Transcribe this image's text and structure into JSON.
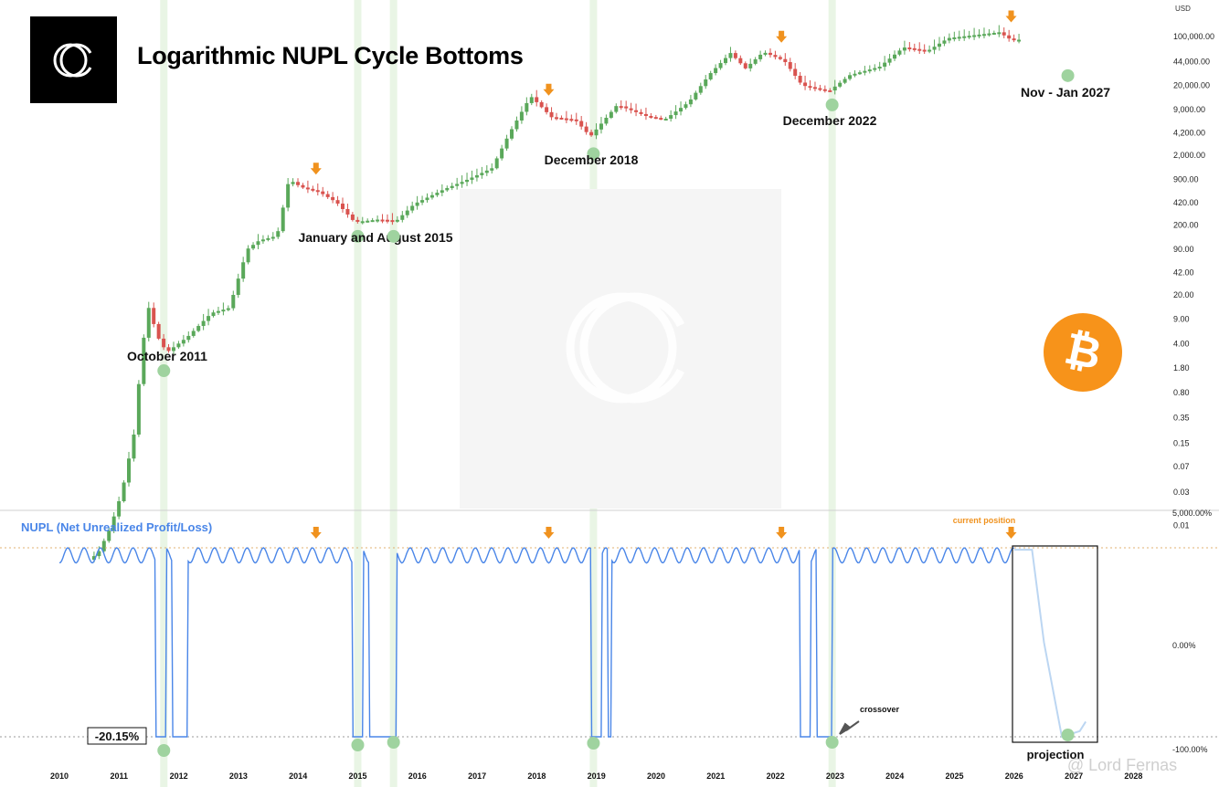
{
  "header": {
    "title": "Logarithmic NUPL Cycle Bottoms"
  },
  "icons": {
    "brand": "cc-logo-icon",
    "coin": "bitcoin-icon",
    "marker": "orange-down-arrow-icon"
  },
  "colors": {
    "up_candle": "#5aa85a",
    "down_candle": "#d9534f",
    "nupl_line": "#4a86e8",
    "projection_line": "#bcd6f2",
    "cycle_bottom_marker": "#9fd39f",
    "cycle_top_arrow": "#f0921e",
    "cycle_band": "#e3f2df",
    "bitcoin": "#f7931a"
  },
  "watermark": "@ Lord Fernas",
  "chart_data": [
    {
      "type": "candlestick",
      "title": "Logarithmic NUPL Cycle Bottoms",
      "y_unit": "USD",
      "y_scale": "log",
      "y_ticks": [
        "100,000.00",
        "44,000.00",
        "20,000.00",
        "9,000.00",
        "4,200.00",
        "2,000.00",
        "900.00",
        "420.00",
        "200.00",
        "90.00",
        "42.00",
        "20.00",
        "9.00",
        "4.00",
        "1.80",
        "0.80",
        "0.35",
        "0.15",
        "0.07",
        "0.03",
        "0.01"
      ],
      "x_ticks": [
        "2010",
        "2011",
        "2012",
        "2013",
        "2014",
        "2015",
        "2016",
        "2017",
        "2018",
        "2019",
        "2020",
        "2021",
        "2022",
        "2023",
        "2024",
        "2025",
        "2026",
        "2027",
        "2028"
      ],
      "price_points": [
        {
          "t": 2010.5,
          "p": 0.003
        },
        {
          "t": 2010.7,
          "p": 0.004
        },
        {
          "t": 2010.9,
          "p": 0.009
        },
        {
          "t": 2011.1,
          "p": 0.03
        },
        {
          "t": 2011.3,
          "p": 0.2
        },
        {
          "t": 2011.45,
          "p": 4
        },
        {
          "t": 2011.55,
          "p": 13
        },
        {
          "t": 2011.7,
          "p": 5
        },
        {
          "t": 2011.85,
          "p": 3
        },
        {
          "t": 2012.2,
          "p": 5
        },
        {
          "t": 2012.6,
          "p": 11
        },
        {
          "t": 2012.9,
          "p": 13
        },
        {
          "t": 2013.2,
          "p": 90
        },
        {
          "t": 2013.4,
          "p": 120
        },
        {
          "t": 2013.7,
          "p": 140
        },
        {
          "t": 2013.9,
          "p": 900
        },
        {
          "t": 2014.1,
          "p": 700
        },
        {
          "t": 2014.4,
          "p": 600
        },
        {
          "t": 2014.7,
          "p": 420
        },
        {
          "t": 2015.0,
          "p": 220
        },
        {
          "t": 2015.4,
          "p": 240
        },
        {
          "t": 2015.7,
          "p": 230
        },
        {
          "t": 2016.0,
          "p": 400
        },
        {
          "t": 2016.5,
          "p": 650
        },
        {
          "t": 2016.9,
          "p": 900
        },
        {
          "t": 2017.3,
          "p": 1300
        },
        {
          "t": 2017.6,
          "p": 4200
        },
        {
          "t": 2017.95,
          "p": 14000
        },
        {
          "t": 2018.3,
          "p": 7000
        },
        {
          "t": 2018.7,
          "p": 6400
        },
        {
          "t": 2018.95,
          "p": 3700
        },
        {
          "t": 2019.4,
          "p": 10500
        },
        {
          "t": 2019.9,
          "p": 7200
        },
        {
          "t": 2020.2,
          "p": 6500
        },
        {
          "t": 2020.6,
          "p": 11500
        },
        {
          "t": 2020.95,
          "p": 29000
        },
        {
          "t": 2021.3,
          "p": 58000
        },
        {
          "t": 2021.55,
          "p": 35000
        },
        {
          "t": 2021.85,
          "p": 60000
        },
        {
          "t": 2022.2,
          "p": 45000
        },
        {
          "t": 2022.5,
          "p": 20000
        },
        {
          "t": 2022.95,
          "p": 16500
        },
        {
          "t": 2023.3,
          "p": 28000
        },
        {
          "t": 2023.8,
          "p": 37000
        },
        {
          "t": 2024.2,
          "p": 70000
        },
        {
          "t": 2024.6,
          "p": 62000
        },
        {
          "t": 2024.95,
          "p": 95000
        },
        {
          "t": 2025.4,
          "p": 105000
        },
        {
          "t": 2025.8,
          "p": 115000
        },
        {
          "t": 2026.0,
          "p": 90000
        }
      ],
      "cycle_bottoms": [
        {
          "label": "October 2011",
          "t": 2011.75,
          "p": 2.5
        },
        {
          "label": "January and August 2015",
          "t": 2015.0,
          "p": 210
        },
        {
          "label": "",
          "t": 2015.6,
          "p": 210
        },
        {
          "label": "December 2018",
          "t": 2018.95,
          "p": 3200
        },
        {
          "label": "December 2022",
          "t": 2022.95,
          "p": 16000
        },
        {
          "label": "Nov - Jan 2027",
          "t": 2026.9,
          "p": 42000,
          "projected": true
        }
      ],
      "cycle_tops": [
        2014.3,
        2018.2,
        2022.1,
        2025.95
      ]
    },
    {
      "type": "line",
      "series": [
        {
          "name": "NUPL (Net Unrealized Profit/Loss)"
        }
      ],
      "y_ticks": [
        "5,000.00%",
        "0.00%",
        "-100.00%"
      ],
      "annotations": {
        "current_position": "current position",
        "crossover": "crossover",
        "projection": "projection",
        "bottom_value": "-20.15%"
      },
      "pattern": {
        "high_plateau": 1.0,
        "low_plateau": 0.0,
        "drops": [
          {
            "from": 2011.6,
            "to": 2012.15
          },
          {
            "from": 2014.9,
            "to": 2015.65
          },
          {
            "from": 2018.9,
            "to": 2019.25
          },
          {
            "from": 2022.4,
            "to": 2022.95
          }
        ],
        "projection": {
          "from": 2026.3,
          "to": 2027.1
        }
      }
    }
  ]
}
